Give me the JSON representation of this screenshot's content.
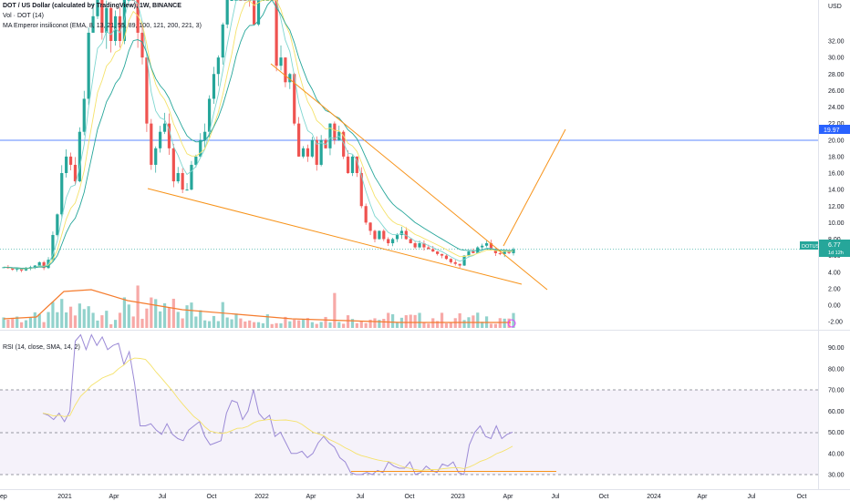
{
  "legend": {
    "title": "DOT / US Dollar (calculated by TradingView), 1W, BINANCE",
    "vol": "Vol · DOT (14)",
    "ma": "MA Emperor insiliconot (EMA, 8, 13, 21, 55, 89, 100, 121, 200, 221, 3)",
    "rsi": "RSI (14, close, SMA, 14, 2)"
  },
  "price_axis": {
    "currency": "USD",
    "ticks": [
      "32.00",
      "30.00",
      "28.00",
      "26.00",
      "24.00",
      "22.00",
      "20.00",
      "18.00",
      "16.00",
      "14.00",
      "12.00",
      "10.00",
      "8.00",
      "6.00",
      "4.00",
      "2.00",
      "0.00",
      "-2.00"
    ],
    "hline_label": "19.97",
    "current_symbol": "DOTUSD",
    "current_price": "6.77",
    "current_sub": "1d 12h"
  },
  "rsi_axis": {
    "ticks": [
      "90.00",
      "80.00",
      "70.00",
      "60.00",
      "50.00",
      "40.00",
      "30.00"
    ]
  },
  "x_axis": [
    "ep",
    "2021",
    "Apr",
    "Jul",
    "Oct",
    "2022",
    "Apr",
    "Jul",
    "Oct",
    "2023",
    "Apr",
    "Jul",
    "Oct",
    "2024",
    "Apr",
    "Jul",
    "Oct"
  ],
  "colors": {
    "up": "#26a69a",
    "down": "#ef5350",
    "hline": "#2962ff",
    "trend": "#f7931a",
    "ma_fast": "#7fd6d0",
    "ma_mid": "#f5e26b",
    "ma_slow": "#26a69a",
    "vol_ma": "#f57c2e",
    "rsi": "#9b8ad6",
    "rsi_sma": "#f5e26b"
  },
  "chart_data": {
    "type": "candlestick",
    "y_range": [
      -2,
      34
    ],
    "hline": 19.97,
    "close": [
      4.6,
      4.5,
      4.3,
      4.4,
      4.2,
      4.5,
      4.6,
      4.8,
      5.2,
      4.5,
      5.5,
      8.5,
      11,
      16,
      18,
      17,
      15,
      21,
      25,
      33,
      35,
      38,
      33,
      36,
      32,
      35,
      32,
      38,
      43,
      40,
      33,
      30,
      22,
      17,
      19,
      21,
      22,
      19,
      15,
      16,
      14,
      14,
      17,
      18,
      20,
      21,
      25,
      28,
      30,
      34,
      38,
      40,
      45,
      43,
      42,
      38,
      34,
      38,
      40,
      44,
      42,
      29,
      30,
      27,
      28,
      22,
      18,
      19,
      18,
      20,
      17,
      20,
      19,
      22,
      20,
      21,
      18,
      16,
      18,
      16,
      12,
      10,
      9,
      8,
      9,
      8,
      7.5,
      8,
      8.5,
      9,
      8,
      7.5,
      7,
      7.5,
      7,
      6.8,
      6.5,
      6.2,
      6,
      5.6,
      5.2,
      5,
      4.8,
      6,
      6.5,
      6.3,
      7,
      7.2,
      7.5,
      6.8,
      6.3,
      6.2,
      6.6,
      6.3,
      6.77
    ],
    "rsi": [
      59,
      58,
      56,
      59,
      55,
      60,
      93,
      96,
      89,
      96,
      91,
      95,
      89,
      91,
      92,
      82,
      88,
      73,
      53,
      53,
      54,
      51,
      49,
      54,
      49,
      47,
      46,
      51,
      53,
      55,
      48,
      44,
      45,
      46,
      59,
      65,
      64,
      56,
      60,
      70,
      59,
      56,
      58,
      48,
      50,
      45,
      40,
      40,
      41,
      38,
      40,
      45,
      48,
      45,
      43,
      38,
      36,
      31,
      30,
      30,
      31,
      30,
      32,
      31,
      36,
      34,
      33,
      33,
      36,
      30,
      31,
      34,
      32,
      31,
      35,
      34,
      36,
      31,
      30,
      44,
      50,
      53,
      48,
      47,
      53,
      47,
      49,
      50
    ],
    "rsi_ylim": [
      28,
      95
    ]
  }
}
